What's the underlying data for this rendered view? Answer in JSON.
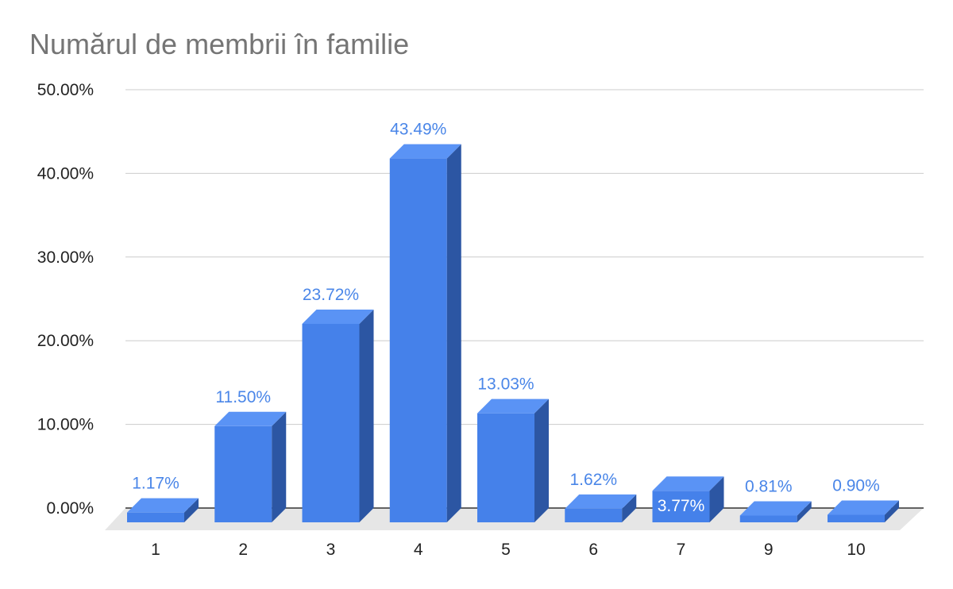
{
  "chart_data": {
    "type": "bar",
    "title": "Numărul de membrii în familie",
    "xlabel": "",
    "ylabel": "",
    "categories": [
      "1",
      "2",
      "3",
      "4",
      "5",
      "6",
      "7",
      "9",
      "10"
    ],
    "values": [
      1.17,
      11.5,
      23.72,
      43.49,
      13.03,
      1.62,
      3.77,
      0.81,
      0.9
    ],
    "data_labels": [
      "1.17%",
      "11.50%",
      "23.72%",
      "43.49%",
      "13.03%",
      "1.62%",
      "3.77%",
      "0.81%",
      "0.90%"
    ],
    "yticks": [
      "0.00%",
      "10.00%",
      "20.00%",
      "30.00%",
      "40.00%",
      "50.00%"
    ],
    "ylim": [
      0,
      50
    ],
    "grid": true,
    "legend": "none",
    "style": "3d",
    "colors": {
      "bar_front": "#4581ea",
      "bar_top": "#5a93f5",
      "bar_side": "#2c56a3",
      "floor": "#e6e6e6",
      "gridline": "#cccccc",
      "axis": "#333333",
      "label_outside": "#4a86e8",
      "label_inside": "#ffffff"
    }
  }
}
